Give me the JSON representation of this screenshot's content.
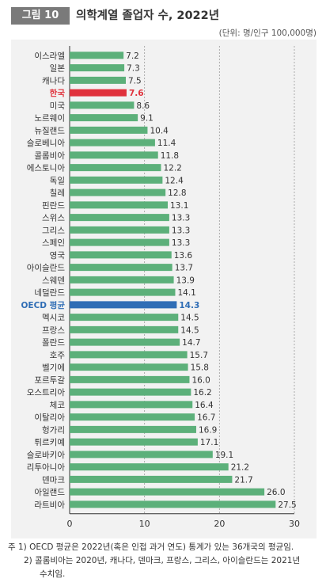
{
  "figure": {
    "badge": "그림 10",
    "title": "의학계열 졸업자 수, 2022년",
    "unit": "(단위: 명/인구 100,000명)"
  },
  "chart_data": {
    "type": "bar",
    "orientation": "horizontal",
    "categories": [
      "이스라엘",
      "일본",
      "캐나다",
      "한국",
      "미국",
      "노르웨이",
      "뉴질랜드",
      "슬로베니아",
      "콜롬비아",
      "에스토니아",
      "독일",
      "칠레",
      "핀란드",
      "스위스",
      "그리스",
      "스페인",
      "영국",
      "아이슬란드",
      "스웨덴",
      "네덜란드",
      "OECD 평균",
      "멕시코",
      "프랑스",
      "폴란드",
      "호주",
      "벨기에",
      "포르투갈",
      "오스트리아",
      "체코",
      "이탈리아",
      "헝가리",
      "튀르키예",
      "슬로바키아",
      "리투아니아",
      "덴마크",
      "아일랜드",
      "라트비아"
    ],
    "values": [
      7.2,
      7.3,
      7.5,
      7.6,
      8.6,
      9.1,
      10.4,
      11.4,
      11.8,
      12.2,
      12.4,
      12.8,
      13.1,
      13.3,
      13.3,
      13.3,
      13.6,
      13.7,
      13.9,
      14.1,
      14.3,
      14.5,
      14.5,
      14.7,
      15.7,
      15.8,
      16.0,
      16.2,
      16.4,
      16.7,
      16.9,
      17.1,
      19.1,
      21.2,
      21.7,
      26.0,
      27.5
    ],
    "value_labels": [
      "7.2",
      "7.3",
      "7.5",
      "7.6",
      "8.6",
      "9.1",
      "10.4",
      "11.4",
      "11.8",
      "12.2",
      "12.4",
      "12.8",
      "13.1",
      "13.3",
      "13.3",
      "13.3",
      "13.6",
      "13.7",
      "13.9",
      "14.1",
      "14.3",
      "14.5",
      "14.5",
      "14.7",
      "15.7",
      "15.8",
      "16.0",
      "16.2",
      "16.4",
      "16.7",
      "16.9",
      "17.1",
      "19.1",
      "21.2",
      "21.7",
      "26.0",
      "27.5"
    ],
    "highlight": {
      "한국": "red",
      "OECD 평균": "blue"
    },
    "colors": {
      "default": "#5cb07a",
      "red": "#e0323c",
      "blue": "#2f6db5",
      "highlight_text_red": "#e0323c",
      "highlight_text_blue": "#2f6db5"
    },
    "xlim": [
      0,
      30
    ],
    "xticks": [
      0,
      10,
      20,
      30
    ],
    "grid": "vertical-dashed"
  },
  "notes": [
    "주 1) OECD 평균은 2022년(혹은 인접 과거 연도) 통계가 있는 36개국의 평균임.",
    "2) 콜롬비아는 2020년, 캐나다, 덴마크, 프랑스, 그리스, 아이슬란드는 2021년",
    "수치임."
  ]
}
